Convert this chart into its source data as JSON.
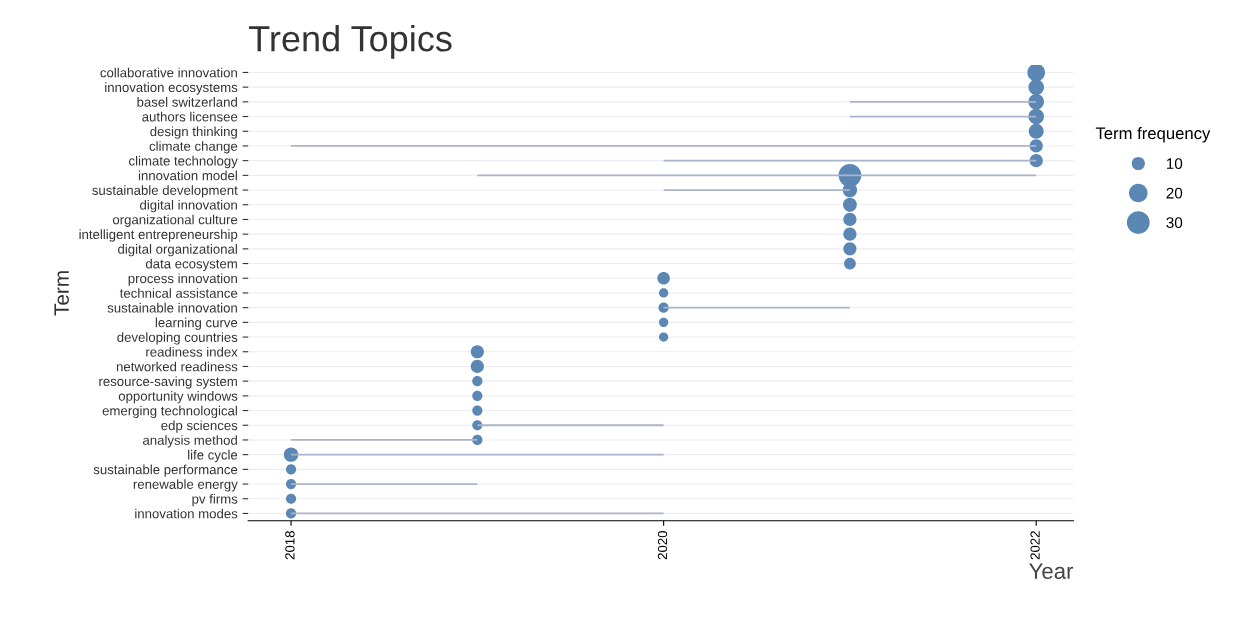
{
  "chart_data": {
    "type": "bubble",
    "orientation": "horizontal",
    "title": "Trend Topics",
    "xlabel": "Year",
    "ylabel": "Term",
    "legend_title": "Term frequency",
    "grid": "y",
    "size_legend": [
      10,
      20,
      30
    ],
    "categories": [
      "collaborative innovation",
      "innovation ecosystems",
      "basel switzerland",
      "authors licensee",
      "design thinking",
      "climate change",
      "climate technology",
      "innovation model",
      "sustainable development",
      "digital innovation",
      "organizational culture",
      "intelligent entrepreneurship",
      "digital organizational",
      "data ecosystem",
      "process innovation",
      "technical assistance",
      "sustainable innovation",
      "learning curve",
      "developing countries",
      "readiness index",
      "networked readiness",
      "resource-saving system",
      "opportunity windows",
      "emerging technological",
      "edp sciences",
      "analysis method",
      "life cycle",
      "sustainable performance",
      "renewable energy",
      "pv firms",
      "innovation modes"
    ],
    "xlim": [
      2017.77,
      2022.2
    ],
    "xticks": [
      2018,
      2020,
      2022
    ],
    "series": [
      {
        "type": "bar",
        "color": "#aab4cc",
        "base": [
          null,
          null,
          2021,
          2021,
          null,
          2018,
          2020,
          2019,
          2020,
          null,
          null,
          null,
          null,
          null,
          null,
          null,
          2020,
          null,
          null,
          null,
          null,
          null,
          null,
          null,
          2019,
          2018,
          2018,
          null,
          2018,
          null,
          2018
        ],
        "values": [
          null,
          null,
          1,
          1,
          null,
          4,
          2,
          3,
          1,
          null,
          null,
          null,
          null,
          null,
          null,
          null,
          1,
          null,
          null,
          null,
          null,
          null,
          null,
          null,
          1,
          1,
          2,
          null,
          1,
          null,
          2
        ]
      },
      {
        "color": "#5b87b5",
        "values": [
          2022,
          2022,
          2022,
          2022,
          2022,
          2022,
          2022,
          2021,
          2021,
          2021,
          2021,
          2021,
          2021,
          2021,
          2020,
          2020,
          2020,
          2020,
          2020,
          2019,
          2019,
          2019,
          2019,
          2019,
          2019,
          2019,
          2018,
          2018,
          2018,
          2018,
          2018
        ],
        "sizes": [
          18,
          14,
          14,
          14,
          13,
          10,
          10,
          30,
          12,
          11,
          10,
          10,
          10,
          8,
          9,
          5,
          6,
          5,
          5,
          10,
          10,
          6,
          6,
          6,
          6,
          6,
          12,
          6,
          6,
          6,
          6
        ]
      }
    ]
  }
}
